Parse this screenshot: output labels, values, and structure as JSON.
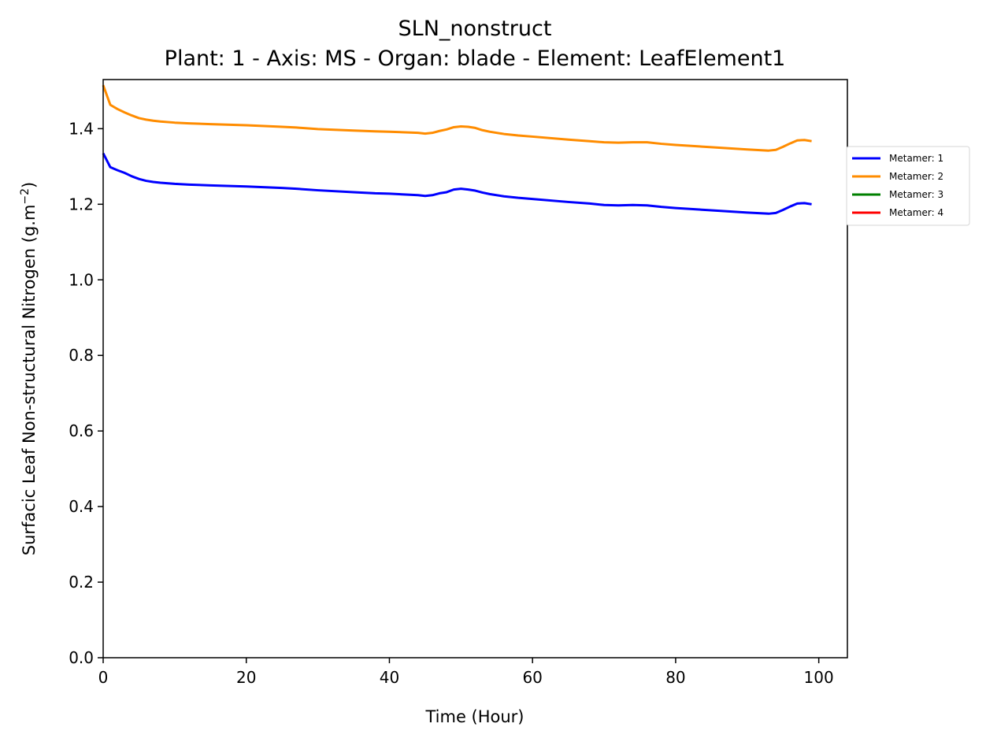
{
  "chart_data": {
    "type": "line",
    "title": "SLN_nonstruct",
    "subtitle": "Plant: 1 - Axis: MS - Organ: blade - Element: LeafElement1",
    "xlabel": "Time (Hour)",
    "ylabel": "Surfacic Leaf Non-structural Nitrogen (g.m",
    "ylabel_sup": "−2",
    "ylabel_tail": ")",
    "xlim": [
      0,
      104
    ],
    "ylim": [
      0,
      1.53
    ],
    "xticks": [
      0,
      20,
      40,
      60,
      80,
      100
    ],
    "xtick_labels": [
      "0",
      "20",
      "40",
      "60",
      "80",
      "100"
    ],
    "yticks": [
      0.0,
      0.2,
      0.4,
      0.6,
      0.8,
      1.0,
      1.2,
      1.4
    ],
    "ytick_labels": [
      "0.0",
      "0.2",
      "0.4",
      "0.6",
      "0.8",
      "1.0",
      "1.2",
      "1.4"
    ],
    "grid": false,
    "legend_position": "outside-right",
    "series": [
      {
        "name": "Metamer: 1",
        "color": "#0000ff",
        "x": [
          0,
          1,
          2,
          3,
          4,
          5,
          6,
          7,
          8,
          10,
          12,
          15,
          20,
          25,
          27,
          30,
          35,
          38,
          40,
          44,
          45,
          46,
          47,
          48,
          49,
          50,
          51,
          52,
          53,
          54,
          56,
          58,
          60,
          65,
          68,
          70,
          72,
          74,
          76,
          78,
          80,
          85,
          90,
          93,
          94,
          95,
          96,
          97,
          98,
          99
        ],
        "y": [
          1.335,
          1.298,
          1.29,
          1.283,
          1.274,
          1.267,
          1.262,
          1.259,
          1.257,
          1.254,
          1.252,
          1.25,
          1.247,
          1.243,
          1.241,
          1.237,
          1.232,
          1.229,
          1.228,
          1.224,
          1.222,
          1.224,
          1.229,
          1.232,
          1.239,
          1.241,
          1.239,
          1.236,
          1.231,
          1.227,
          1.221,
          1.217,
          1.214,
          1.206,
          1.202,
          1.198,
          1.197,
          1.198,
          1.197,
          1.193,
          1.19,
          1.184,
          1.178,
          1.175,
          1.177,
          1.185,
          1.194,
          1.202,
          1.203,
          1.2
        ]
      },
      {
        "name": "Metamer: 2",
        "color": "#ff8c00",
        "x": [
          0,
          1,
          2,
          3,
          4,
          5,
          6,
          7,
          8,
          10,
          12,
          15,
          20,
          25,
          27,
          30,
          35,
          38,
          40,
          44,
          45,
          46,
          47,
          48,
          49,
          50,
          51,
          52,
          53,
          54,
          56,
          58,
          60,
          65,
          68,
          70,
          72,
          74,
          76,
          78,
          80,
          85,
          90,
          93,
          94,
          95,
          96,
          97,
          98,
          99
        ],
        "y": [
          1.515,
          1.463,
          1.452,
          1.443,
          1.435,
          1.428,
          1.424,
          1.421,
          1.419,
          1.416,
          1.414,
          1.412,
          1.409,
          1.405,
          1.403,
          1.399,
          1.395,
          1.393,
          1.392,
          1.389,
          1.387,
          1.389,
          1.394,
          1.398,
          1.404,
          1.406,
          1.405,
          1.402,
          1.396,
          1.392,
          1.386,
          1.382,
          1.379,
          1.371,
          1.367,
          1.364,
          1.363,
          1.364,
          1.364,
          1.36,
          1.357,
          1.351,
          1.345,
          1.342,
          1.344,
          1.352,
          1.361,
          1.369,
          1.37,
          1.367
        ]
      },
      {
        "name": "Metamer: 3",
        "color": "#008000",
        "x": [],
        "y": []
      },
      {
        "name": "Metamer: 4",
        "color": "#ff0000",
        "x": [],
        "y": []
      }
    ]
  }
}
